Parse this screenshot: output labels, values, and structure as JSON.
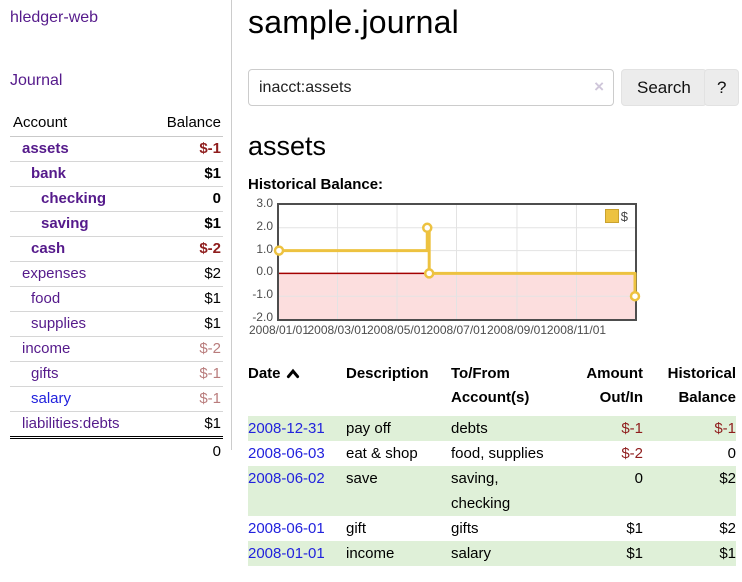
{
  "sidebar": {
    "brand": "hledger-web",
    "nav": [
      {
        "label": "Journal"
      }
    ],
    "accounts_table": {
      "headers": [
        "Account",
        "Balance"
      ],
      "rows": [
        {
          "account": "assets",
          "balance": "$-1",
          "indent": 1,
          "bold": true,
          "balance_color": "negative-strong",
          "link_color": "purple"
        },
        {
          "account": "bank",
          "balance": "$1",
          "indent": 2,
          "bold": true,
          "balance_color": "normal",
          "link_color": "purple"
        },
        {
          "account": "checking",
          "balance": "0",
          "indent": 3,
          "bold": true,
          "balance_color": "normal",
          "link_color": "purple"
        },
        {
          "account": "saving",
          "balance": "$1",
          "indent": 3,
          "bold": true,
          "balance_color": "normal",
          "link_color": "purple"
        },
        {
          "account": "cash",
          "balance": "$-2",
          "indent": 2,
          "bold": true,
          "balance_color": "negative-strong",
          "link_color": "purple"
        },
        {
          "account": "expenses",
          "balance": "$2",
          "indent": 1,
          "bold": false,
          "balance_color": "normal",
          "link_color": "purple"
        },
        {
          "account": "food",
          "balance": "$1",
          "indent": 2,
          "bold": false,
          "balance_color": "normal",
          "link_color": "purple"
        },
        {
          "account": "supplies",
          "balance": "$1",
          "indent": 2,
          "bold": false,
          "balance_color": "normal",
          "link_color": "purple"
        },
        {
          "account": "income",
          "balance": "$-2",
          "indent": 1,
          "bold": false,
          "balance_color": "negative-soft",
          "link_color": "purple"
        },
        {
          "account": "gifts",
          "balance": "$-1",
          "indent": 2,
          "bold": false,
          "balance_color": "negative-soft",
          "link_color": "purple"
        },
        {
          "account": "salary",
          "balance": "$-1",
          "indent": 2,
          "bold": false,
          "balance_color": "negative-soft",
          "link_color": "blue"
        },
        {
          "account": "liabilities:debts",
          "balance": "$1",
          "indent": 1,
          "bold": false,
          "balance_color": "normal",
          "link_color": "purple"
        }
      ],
      "total": "0"
    }
  },
  "header": {
    "title": "sample.journal"
  },
  "search": {
    "value": "inacct:assets",
    "clear_icon": "×",
    "button_label": "Search",
    "help_label": "?"
  },
  "account_page": {
    "title": "assets",
    "chart_label": "Historical Balance:"
  },
  "chart_data": {
    "type": "line",
    "title": "Historical Balance",
    "step": true,
    "series": [
      {
        "name": "$",
        "color": "#EDC240",
        "points": [
          [
            "2008/01/01",
            1
          ],
          [
            "2008/06/01",
            2
          ],
          [
            "2008/06/03",
            0
          ],
          [
            "2008/12/31",
            -1
          ]
        ]
      }
    ],
    "x_ticks": [
      "2008/01/01",
      "2008/03/01",
      "2008/05/01",
      "2008/07/01",
      "2008/09/01",
      "2008/11/01"
    ],
    "y_ticks": [
      "3.0",
      "2.0",
      "1.0",
      "0.0",
      "-1.0",
      "-2.0"
    ],
    "xlim": [
      "2008/01/01",
      "2008/12/31"
    ],
    "ylim": [
      -2,
      3
    ],
    "grid": true,
    "legend_position": "top-right",
    "negative_region_color": "#fcdede",
    "zero_line_color": "#a40000",
    "gridline_color": "#e3e3e3"
  },
  "register_table": {
    "headers": [
      "Date",
      "Description",
      "To/From Account(s)",
      "Amount Out/In",
      "Historical Balance"
    ],
    "sort_indicator": "ascending",
    "rows": [
      {
        "date": "2008-12-31",
        "description": "pay off",
        "accounts": "debts",
        "amount": "$-1",
        "balance": "$-1"
      },
      {
        "date": "2008-06-03",
        "description": "eat & shop",
        "accounts": "food, supplies",
        "amount": "$-2",
        "balance": "0"
      },
      {
        "date": "2008-06-02",
        "description": "save",
        "accounts": "saving, checking",
        "amount": "0",
        "balance": "$2"
      },
      {
        "date": "2008-06-01",
        "description": "gift",
        "accounts": "gifts",
        "amount": "$1",
        "balance": "$2"
      },
      {
        "date": "2008-01-01",
        "description": "income",
        "accounts": "salary",
        "amount": "$1",
        "balance": "$1"
      }
    ]
  }
}
